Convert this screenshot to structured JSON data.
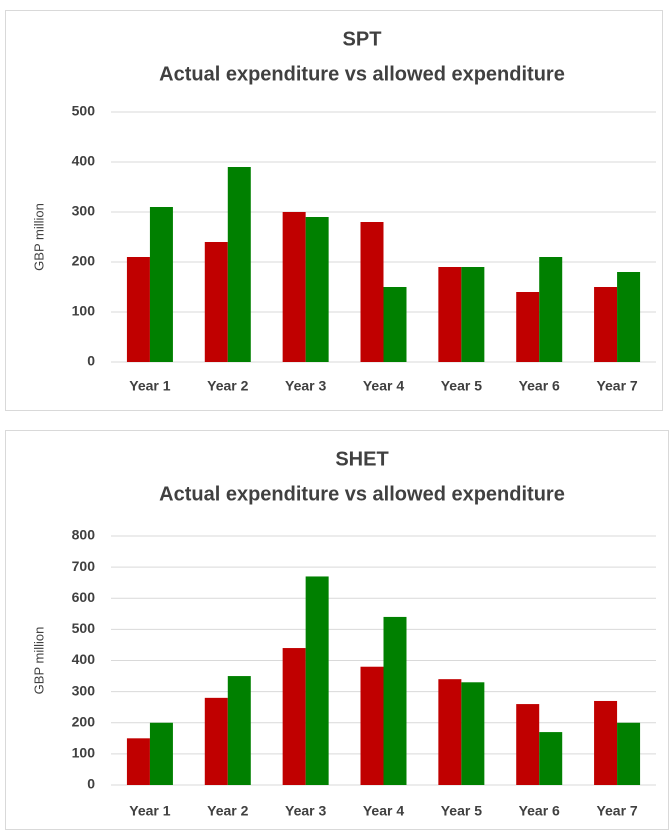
{
  "chart_data": [
    {
      "type": "bar",
      "title": "SPT",
      "subtitle": "Actual expenditure vs allowed expenditure",
      "y_label": "GBP million",
      "categories": [
        "Year 1",
        "Year 2",
        "Year 3",
        "Year 4",
        "Year 5",
        "Year 6",
        "Year 7"
      ],
      "series": [
        {
          "color": "#c00000",
          "values": [
            210,
            240,
            300,
            280,
            190,
            140,
            150
          ]
        },
        {
          "color": "#008000",
          "values": [
            310,
            390,
            290,
            150,
            190,
            210,
            180
          ]
        }
      ],
      "ylim": [
        0,
        500
      ],
      "yticks": [
        0,
        100,
        200,
        300,
        400,
        500
      ],
      "grid": true
    },
    {
      "type": "bar",
      "title": "SHET",
      "subtitle": "Actual expenditure vs allowed expenditure",
      "y_label": "GBP million",
      "categories": [
        "Year 1",
        "Year 2",
        "Year 3",
        "Year 4",
        "Year 5",
        "Year 6",
        "Year 7"
      ],
      "series": [
        {
          "color": "#c00000",
          "values": [
            150,
            280,
            440,
            380,
            340,
            260,
            270
          ]
        },
        {
          "color": "#008000",
          "values": [
            200,
            350,
            670,
            540,
            330,
            170,
            200
          ]
        }
      ],
      "ylim": [
        0,
        800
      ],
      "yticks": [
        0,
        100,
        200,
        300,
        400,
        500,
        600,
        700,
        800
      ],
      "grid": true
    }
  ]
}
